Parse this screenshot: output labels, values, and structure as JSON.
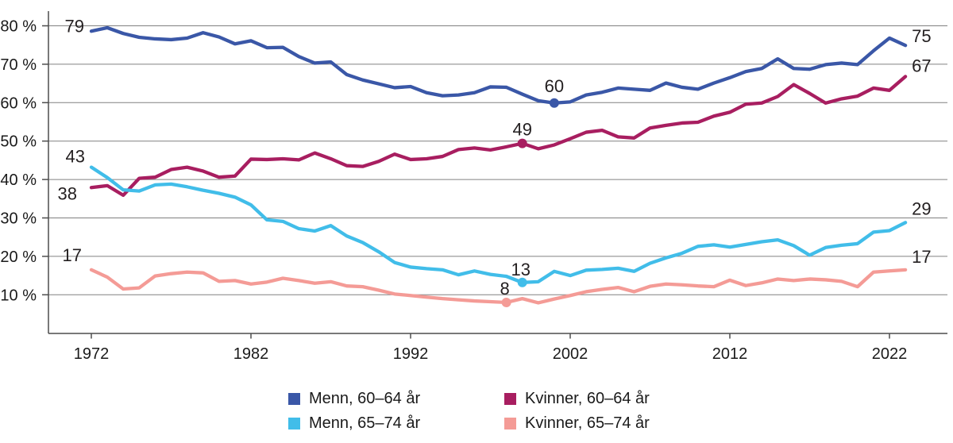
{
  "chart_data": {
    "type": "line",
    "title": "",
    "grid": true,
    "legend_position": "bottom",
    "colors": {
      "grid": "#808080",
      "axis": "#4d4d4d",
      "text": "#1a1a1a",
      "annotation": "#231f20"
    },
    "x_axis": {
      "ticks": [
        1972,
        1982,
        1992,
        2002,
        2012,
        2022
      ],
      "range": [
        1972,
        2023
      ]
    },
    "y_axis": {
      "tick_values": [
        80,
        70,
        60,
        50,
        40,
        30,
        20,
        10
      ],
      "tick_labels": [
        "80 %",
        "70 %",
        "60 %",
        "50 %",
        "40 %",
        "30 %",
        "20 %",
        "10 %"
      ],
      "range": [
        0,
        85
      ]
    },
    "years": [
      1972,
      1973,
      1974,
      1975,
      1976,
      1977,
      1978,
      1979,
      1980,
      1981,
      1982,
      1983,
      1984,
      1985,
      1986,
      1987,
      1988,
      1989,
      1990,
      1991,
      1992,
      1993,
      1994,
      1995,
      1996,
      1997,
      1998,
      1999,
      2000,
      2001,
      2002,
      2003,
      2004,
      2005,
      2006,
      2007,
      2008,
      2009,
      2010,
      2011,
      2012,
      2013,
      2014,
      2015,
      2016,
      2017,
      2018,
      2019,
      2020,
      2021,
      2022,
      2023
    ],
    "series": [
      {
        "name": "Menn, 60–64 år",
        "color": "#3a57a7",
        "values": [
          78.6,
          79.5,
          78.0,
          77.0,
          76.6,
          76.4,
          76.8,
          78.2,
          77.1,
          75.3,
          76.1,
          74.3,
          74.4,
          72.0,
          70.3,
          70.6,
          67.3,
          65.9,
          64.9,
          63.9,
          64.2,
          62.6,
          61.8,
          62.0,
          62.6,
          64.1,
          64.0,
          62.2,
          60.5,
          59.9,
          60.2,
          62.0,
          62.7,
          63.8,
          63.5,
          63.2,
          65.1,
          64.0,
          63.5,
          65.1,
          66.5,
          68.1,
          68.9,
          71.4,
          68.9,
          68.7,
          69.9,
          70.3,
          69.9,
          73.5,
          76.8,
          74.9
        ],
        "start_label": "79",
        "end_label": "75",
        "marker": {
          "year": 2001,
          "label": "60"
        }
      },
      {
        "name": "Kvinner, 60–64 år",
        "color": "#a81e60",
        "values": [
          37.9,
          38.4,
          35.9,
          40.3,
          40.6,
          42.6,
          43.2,
          42.2,
          40.6,
          40.9,
          45.3,
          45.2,
          45.4,
          45.1,
          46.9,
          45.4,
          43.6,
          43.4,
          44.7,
          46.6,
          45.2,
          45.4,
          46.0,
          47.8,
          48.2,
          47.7,
          48.5,
          49.4,
          48.0,
          49.0,
          50.6,
          52.3,
          52.8,
          51.1,
          50.8,
          53.4,
          54.1,
          54.7,
          54.9,
          56.5,
          57.5,
          59.6,
          59.9,
          61.6,
          64.7,
          62.4,
          59.9,
          61.0,
          61.7,
          63.8,
          63.2,
          66.8
        ],
        "start_label": "38",
        "end_label": "67",
        "marker": {
          "year": 1999,
          "label": "49"
        }
      },
      {
        "name": "Menn, 65–74 år",
        "color": "#41bde9",
        "values": [
          43.2,
          40.5,
          37.3,
          37.0,
          38.6,
          38.8,
          38.1,
          37.2,
          36.4,
          35.4,
          33.4,
          29.5,
          29.1,
          27.2,
          26.6,
          28.0,
          25.3,
          23.6,
          21.2,
          18.4,
          17.2,
          16.8,
          16.5,
          15.2,
          16.2,
          15.3,
          14.8,
          13.2,
          13.4,
          16.1,
          15.0,
          16.4,
          16.6,
          16.9,
          16.1,
          18.2,
          19.6,
          20.8,
          22.6,
          23.0,
          22.4,
          23.1,
          23.8,
          24.3,
          22.8,
          20.3,
          22.3,
          22.9,
          23.3,
          26.3,
          26.7,
          28.8
        ],
        "start_label": "43",
        "end_label": "29",
        "marker": {
          "year": 1999,
          "label": "13"
        }
      },
      {
        "name": "Kvinner, 65–74 år",
        "color": "#f49b96",
        "values": [
          16.5,
          14.6,
          11.5,
          11.8,
          14.9,
          15.5,
          15.9,
          15.7,
          13.5,
          13.7,
          12.8,
          13.3,
          14.3,
          13.7,
          13.0,
          13.4,
          12.3,
          12.1,
          11.2,
          10.2,
          9.8,
          9.4,
          9.0,
          8.7,
          8.4,
          8.2,
          8.0,
          9.0,
          7.9,
          8.9,
          9.8,
          10.8,
          11.4,
          11.9,
          10.8,
          12.2,
          12.8,
          12.6,
          12.3,
          12.1,
          13.8,
          12.4,
          13.1,
          14.1,
          13.7,
          14.1,
          13.9,
          13.5,
          12.1,
          15.9,
          16.2,
          16.5
        ],
        "start_label": "17",
        "end_label": "17",
        "marker": {
          "year": 1998,
          "label": "8"
        }
      }
    ]
  }
}
